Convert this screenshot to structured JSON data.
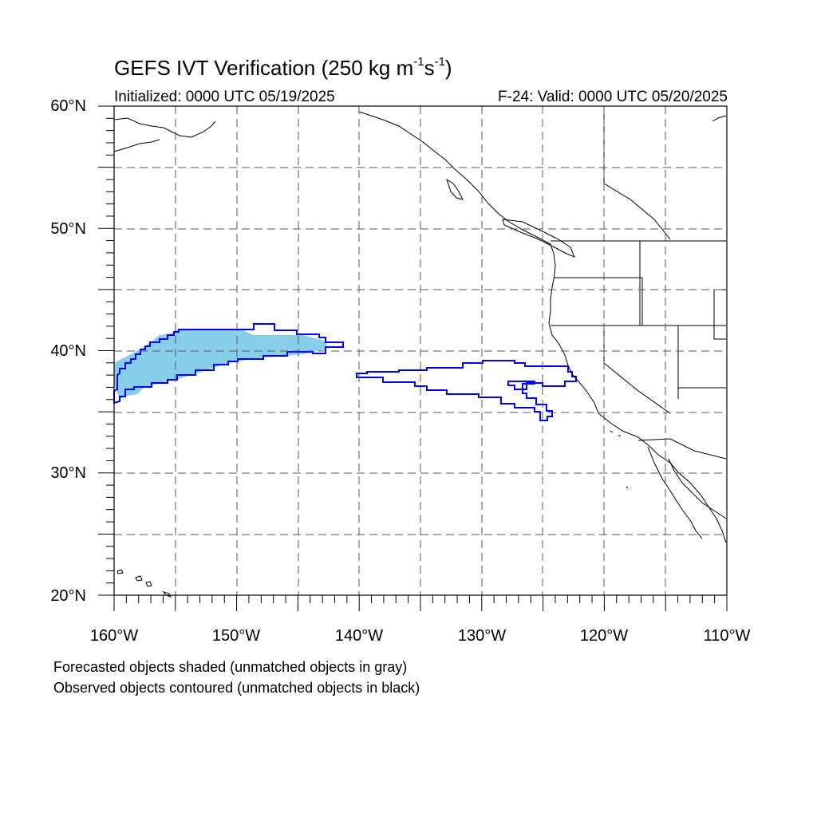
{
  "header": {
    "title": "GEFS IVT Verification (250 kg m",
    "title_exp1": "-1",
    "title_mid": "s",
    "title_exp2": "-1",
    "title_end": ")",
    "initialized": "Initialized: 0000 UTC 05/19/2025",
    "valid": "F-24: Valid: 0000 UTC 05/20/2025"
  },
  "map": {
    "projection": "cylindrical equidistant",
    "lon_range": [
      -160,
      -110
    ],
    "lat_range": [
      20,
      60
    ],
    "grid_spacing_deg": 5,
    "grid_style": "dashed",
    "lat_labels": [
      "60°N",
      "50°N",
      "40°N",
      "30°N",
      "20°N"
    ],
    "lon_labels": [
      "160°W",
      "150°W",
      "140°W",
      "130°W",
      "120°W",
      "110°W"
    ],
    "colors": {
      "forecast_fill": "#87CEEB",
      "observed_contour": "#0000FF",
      "coastline": "#000000",
      "grid": "#555555"
    }
  },
  "legend": {
    "line1": "Forecasted objects shaded (unmatched objects in gray)",
    "line2": "Observed objects contoured (unmatched objects in black)"
  }
}
